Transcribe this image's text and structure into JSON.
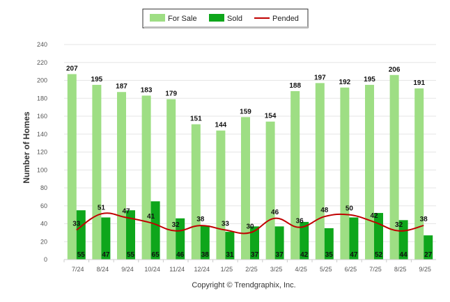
{
  "chart_data": {
    "type": "bar",
    "title": "",
    "ylabel": "Number of Homes",
    "xlabel": "",
    "ylim": [
      0,
      240
    ],
    "yticks": [
      0,
      20,
      40,
      60,
      80,
      100,
      120,
      140,
      160,
      180,
      200,
      220,
      240
    ],
    "categories": [
      "7/24",
      "8/24",
      "9/24",
      "10/24",
      "11/24",
      "12/24",
      "1/25",
      "2/25",
      "3/25",
      "4/25",
      "5/25",
      "6/25",
      "7/25",
      "8/25",
      "9/25"
    ],
    "series": [
      {
        "name": "For Sale",
        "kind": "bar",
        "color": "#9ede84",
        "values": [
          207,
          195,
          187,
          183,
          179,
          151,
          144,
          159,
          154,
          188,
          197,
          192,
          195,
          206,
          191
        ]
      },
      {
        "name": "Sold",
        "kind": "bar",
        "color": "#0ea61b",
        "values": [
          55,
          47,
          55,
          65,
          46,
          38,
          31,
          37,
          37,
          42,
          35,
          47,
          52,
          44,
          27
        ]
      },
      {
        "name": "Pended",
        "kind": "line",
        "color": "#c00000",
        "values": [
          33,
          51,
          47,
          41,
          32,
          38,
          33,
          30,
          46,
          36,
          48,
          50,
          42,
          32,
          38
        ]
      }
    ],
    "legend": "top-center",
    "grid": true,
    "copyright": "Copyright © Trendgraphix, Inc."
  }
}
